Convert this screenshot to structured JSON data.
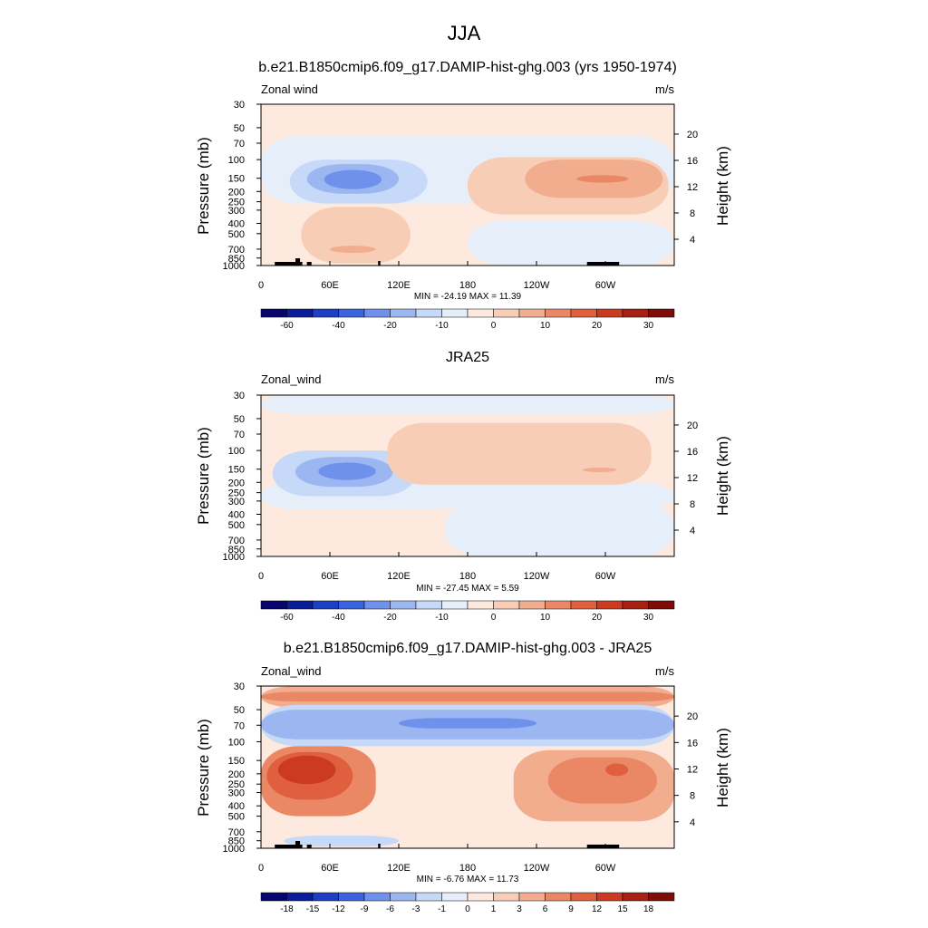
{
  "title": "JJA",
  "colors": {
    "cbar1": [
      "#08066e",
      "#0a1e9c",
      "#1c3fc6",
      "#3a63df",
      "#6f90eb",
      "#9cb6f2",
      "#c7d9f8",
      "#e6eef9",
      "#fde9dd",
      "#f8cdb6",
      "#f2ad8f",
      "#ea8866",
      "#df5f3f",
      "#cc3a22",
      "#a82012",
      "#7d0d06"
    ],
    "cbar3": [
      "#08066e",
      "#0a1e9c",
      "#1c3fc6",
      "#3a63df",
      "#6f90eb",
      "#9cb6f2",
      "#c7d9f8",
      "#e6eef9",
      "#fde9dd",
      "#f8cdb6",
      "#f2ad8f",
      "#ea8866",
      "#df5f3f",
      "#cc3a22",
      "#a82012",
      "#7d0d06"
    ]
  },
  "chart_data": [
    {
      "type": "heatmap",
      "title": "b.e21.B1850cmip6.f09_g17.DAMIP-hist-ghg.003 (yrs 1950-1974)",
      "left_label": "Zonal wind",
      "right_label": "m/s",
      "xlabel": "",
      "ylabel": "Pressure (mb)",
      "ylabel_right": "Height (km)",
      "x_ticks": [
        "0",
        "60E",
        "120E",
        "180",
        "120W",
        "60W"
      ],
      "y_ticks": [
        "30",
        "50",
        "70",
        "100",
        "150",
        "200",
        "250",
        "300",
        "400",
        "500",
        "700",
        "850",
        "1000"
      ],
      "right_ticks": [
        "20",
        "16",
        "12",
        "8",
        "4"
      ],
      "stats": "MIN = -24.19  MAX =  11.39",
      "colorbar_labels": [
        "-60",
        "-40",
        "-20",
        "-10",
        "0",
        "10",
        "20",
        "30"
      ],
      "background": "#fde9dd",
      "blobs": [
        {
          "lon": 0,
          "lon2": 360,
          "p": 60,
          "p2": 260,
          "level": 7
        },
        {
          "lon": 25,
          "lon2": 145,
          "p": 100,
          "p2": 260,
          "level": 6
        },
        {
          "lon": 40,
          "lon2": 120,
          "p": 110,
          "p2": 210,
          "level": 5
        },
        {
          "lon": 55,
          "lon2": 105,
          "p": 125,
          "p2": 190,
          "level": 4
        },
        {
          "lon": 180,
          "lon2": 360,
          "p": 380,
          "p2": 1000,
          "level": 7
        },
        {
          "lon": 180,
          "lon2": 355,
          "p": 95,
          "p2": 330,
          "level": 9
        },
        {
          "lon": 230,
          "lon2": 350,
          "p": 100,
          "p2": 230,
          "level": 10
        },
        {
          "lon": 275,
          "lon2": 320,
          "p": 140,
          "p2": 165,
          "level": 11
        },
        {
          "lon": 35,
          "lon2": 130,
          "p": 280,
          "p2": 950,
          "level": 9
        },
        {
          "lon": 60,
          "lon2": 100,
          "p": 650,
          "p2": 760,
          "level": 10
        }
      ]
    },
    {
      "type": "heatmap",
      "title": "JRA25",
      "left_label": "Zonal_wind",
      "right_label": "m/s",
      "xlabel": "",
      "ylabel": "Pressure (mb)",
      "ylabel_right": "Height (km)",
      "x_ticks": [
        "0",
        "60E",
        "120E",
        "180",
        "120W",
        "60W"
      ],
      "y_ticks": [
        "30",
        "50",
        "70",
        "100",
        "150",
        "200",
        "250",
        "300",
        "400",
        "500",
        "700",
        "850",
        "1000"
      ],
      "right_ticks": [
        "20",
        "16",
        "12",
        "8",
        "4"
      ],
      "stats": "MIN = -27.45  MAX =   5.59",
      "colorbar_labels": [
        "-60",
        "-40",
        "-20",
        "-10",
        "0",
        "10",
        "20",
        "30"
      ],
      "background": "#fde9dd",
      "blobs": [
        {
          "lon": 0,
          "lon2": 360,
          "p": 30,
          "p2": 45,
          "level": 7
        },
        {
          "lon": 0,
          "lon2": 360,
          "p": 200,
          "p2": 360,
          "level": 7
        },
        {
          "lon": 160,
          "lon2": 360,
          "p": 300,
          "p2": 1000,
          "level": 7
        },
        {
          "lon": 10,
          "lon2": 135,
          "p": 100,
          "p2": 270,
          "level": 6
        },
        {
          "lon": 30,
          "lon2": 115,
          "p": 115,
          "p2": 220,
          "level": 5
        },
        {
          "lon": 50,
          "lon2": 100,
          "p": 130,
          "p2": 190,
          "level": 4
        },
        {
          "lon": 110,
          "lon2": 340,
          "p": 55,
          "p2": 210,
          "level": 9
        },
        {
          "lon": 280,
          "lon2": 310,
          "p": 145,
          "p2": 160,
          "level": 10
        },
        {
          "lon": 40,
          "lon2": 130,
          "p": 380,
          "p2": 900,
          "level": 8
        }
      ]
    },
    {
      "type": "heatmap",
      "title": "b.e21.B1850cmip6.f09_g17.DAMIP-hist-ghg.003 - JRA25",
      "left_label": "Zonal_wind",
      "right_label": "m/s",
      "xlabel": "",
      "ylabel": "Pressure (mb)",
      "ylabel_right": "Height (km)",
      "x_ticks": [
        "0",
        "60E",
        "120E",
        "180",
        "120W",
        "60W"
      ],
      "y_ticks": [
        "30",
        "50",
        "70",
        "100",
        "150",
        "200",
        "250",
        "300",
        "400",
        "500",
        "700",
        "850",
        "1000"
      ],
      "right_ticks": [
        "20",
        "16",
        "12",
        "8",
        "4"
      ],
      "stats": "MIN =  -6.76  MAX =  11.73",
      "colorbar_labels": [
        "-18",
        "-15",
        "-12",
        "-9",
        "-6",
        "-3",
        "-1",
        "0",
        "1",
        "3",
        "6",
        "9",
        "12",
        "15",
        "18"
      ],
      "background": "#fde9dd",
      "blobs": [
        {
          "lon": 0,
          "lon2": 360,
          "p": 30,
          "p2": 48,
          "level": 10
        },
        {
          "lon": 0,
          "lon2": 360,
          "p": 34,
          "p2": 42,
          "level": 11
        },
        {
          "lon": 0,
          "lon2": 360,
          "p": 45,
          "p2": 110,
          "level": 6
        },
        {
          "lon": 0,
          "lon2": 360,
          "p": 50,
          "p2": 95,
          "level": 5
        },
        {
          "lon": 120,
          "lon2": 240,
          "p": 60,
          "p2": 75,
          "level": 4
        },
        {
          "lon": 0,
          "lon2": 100,
          "p": 110,
          "p2": 500,
          "level": 11
        },
        {
          "lon": 5,
          "lon2": 80,
          "p": 125,
          "p2": 350,
          "level": 12
        },
        {
          "lon": 15,
          "lon2": 65,
          "p": 135,
          "p2": 250,
          "level": 13
        },
        {
          "lon": 220,
          "lon2": 360,
          "p": 120,
          "p2": 560,
          "level": 10
        },
        {
          "lon": 250,
          "lon2": 345,
          "p": 140,
          "p2": 380,
          "level": 11
        },
        {
          "lon": 300,
          "lon2": 320,
          "p": 160,
          "p2": 210,
          "level": 12
        },
        {
          "lon": 20,
          "lon2": 120,
          "p": 760,
          "p2": 960,
          "level": 6
        }
      ]
    }
  ]
}
